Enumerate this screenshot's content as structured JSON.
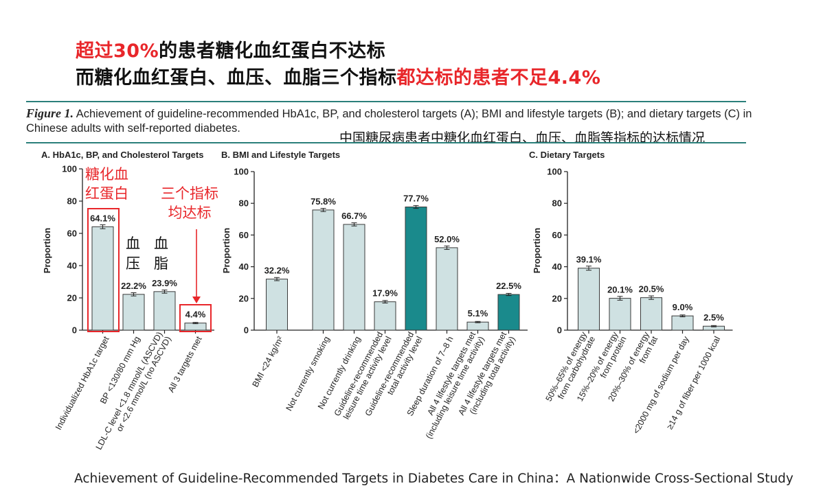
{
  "headline": {
    "line1_red": "超过30%",
    "line1_rest": "的患者糖化血红蛋白不达标",
    "line2_black": "而糖化血红蛋白、血压、血脂三个指标",
    "line2_red": "都达标的患者不足4.4%"
  },
  "caption": {
    "lead": "Figure 1.",
    "text": "Achievement of guideline-recommended HbA1c, BP, and cholesterol targets (A); BMI and lifestyle targets (B); and dietary targets (C) in Chinese adults with self-reported diabetes.",
    "cn": "中国糖尿病患者中糖化血红蛋白、血压、血脂等指标的达标情况"
  },
  "annotations": {
    "hba1c_1": "糖化血",
    "hba1c_2": "红蛋白",
    "bp_1": "血",
    "bp_2": "压",
    "lipid_1": "血",
    "lipid_2": "脂",
    "all3_1": "三个指标",
    "all3_2": "均达标"
  },
  "footer": "Achievement of Guideline-Recommended Targets in Diabetes Care in China：A Nationwide Cross-Sectional Study",
  "colors": {
    "light_bar": "#cfe1e2",
    "dark_bar": "#1a8a8c",
    "red": "#e8262a",
    "rule": "#2a7f7a"
  },
  "chart_data": [
    {
      "type": "bar",
      "title": "A. HbA1c, BP, and Cholesterol Targets",
      "ylabel": "Proportion",
      "ylim": [
        0,
        100
      ],
      "yticks": [
        0,
        20,
        40,
        60,
        80,
        100
      ],
      "categories": [
        "Individualized HbA1c target",
        "BP <130/80 mm Hg",
        "LDL-C level <1.8 mmol/L (ASCVD)|or <2.6 mmol/L (no ASCVD)",
        "All 3 targets met"
      ],
      "values": [
        64.1,
        22.2,
        23.9,
        4.4
      ],
      "labels": [
        "64.1%",
        "22.2%",
        "23.9%",
        "4.4%"
      ],
      "errors": [
        1.2,
        1.0,
        1.0,
        0.4
      ],
      "dark": [
        false,
        false,
        false,
        false
      ]
    },
    {
      "type": "bar",
      "title": "B. BMI and Lifestyle Targets",
      "ylabel": "Proportion",
      "ylim": [
        0,
        100
      ],
      "yticks": [
        0,
        20,
        40,
        60,
        80,
        100
      ],
      "categories": [
        "BMI <24 kg/m²",
        "Not currently smoking",
        "Not currently drinking",
        "Guideline-recommended|leisure time activity level",
        "Guideline-recommended|total activity level",
        "Sleep duration of 7–8 h",
        "All 4 lifestyle targets met|(including leisure time activity)",
        "All 4 lifestyle targets met|(including total activity)"
      ],
      "values": [
        32.2,
        75.8,
        66.7,
        17.9,
        77.7,
        52.0,
        5.1,
        22.5
      ],
      "labels": [
        "32.2%",
        "75.8%",
        "66.7%",
        "17.9%",
        "77.7%",
        "52.0%",
        "5.1%",
        "22.5%"
      ],
      "errors": [
        1.0,
        1.0,
        1.0,
        0.8,
        0.9,
        1.1,
        0.4,
        0.7
      ],
      "dark": [
        false,
        false,
        false,
        false,
        true,
        false,
        false,
        true
      ],
      "slots": [
        0,
        1.5,
        2.5,
        3.5,
        4.5,
        5.5,
        6.5,
        7.5
      ]
    },
    {
      "type": "bar",
      "title": "C. Dietary Targets",
      "ylabel": "Proportion",
      "ylim": [
        0,
        100
      ],
      "yticks": [
        0,
        20,
        40,
        60,
        80,
        100
      ],
      "categories": [
        "50%–65% of energy|from carbohydrate",
        "15%–20% of energy|from protein",
        "20%–30% of energy|from fat",
        "<2000 mg of sodium per day",
        "≥14 g of fiber per 1000 kcal"
      ],
      "values": [
        39.1,
        20.1,
        20.5,
        9.0,
        2.5
      ],
      "labels": [
        "39.1%",
        "20.1%",
        "20.5%",
        "9.0%",
        "2.5%"
      ],
      "errors": [
        1.3,
        1.2,
        1.1,
        0.6,
        0.4
      ],
      "dark": [
        false,
        false,
        false,
        false,
        false
      ]
    }
  ]
}
